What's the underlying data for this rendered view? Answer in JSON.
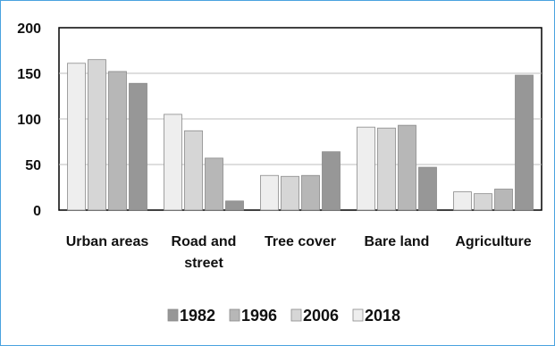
{
  "chart_data": {
    "type": "bar",
    "title": "",
    "xlabel": "",
    "ylabel": "",
    "ylim": [
      0,
      200
    ],
    "yticks": [
      "0",
      "50",
      "100",
      "150",
      "200"
    ],
    "grid": true,
    "legend_placement": "bottom",
    "categories": [
      "Urban areas",
      "Road and street",
      "Tree cover",
      "Bare land",
      "Agriculture"
    ],
    "category_lines": [
      [
        "Urban areas"
      ],
      [
        "Road and",
        "street"
      ],
      [
        "Tree cover"
      ],
      [
        "Bare land"
      ],
      [
        "Agriculture"
      ]
    ],
    "series": [
      {
        "name": "2018",
        "color": "#eeeeee",
        "values": [
          161,
          105,
          38,
          91,
          20
        ]
      },
      {
        "name": "2006",
        "color": "#d6d6d6",
        "values": [
          165,
          87,
          37,
          90,
          18
        ]
      },
      {
        "name": "1996",
        "color": "#b7b7b7",
        "values": [
          152,
          57,
          38,
          93,
          23
        ]
      },
      {
        "name": "1982",
        "color": "#979797",
        "values": [
          139,
          10,
          64,
          47,
          148
        ]
      }
    ],
    "legend_order": [
      "1982",
      "1996",
      "2006",
      "2018"
    ]
  }
}
